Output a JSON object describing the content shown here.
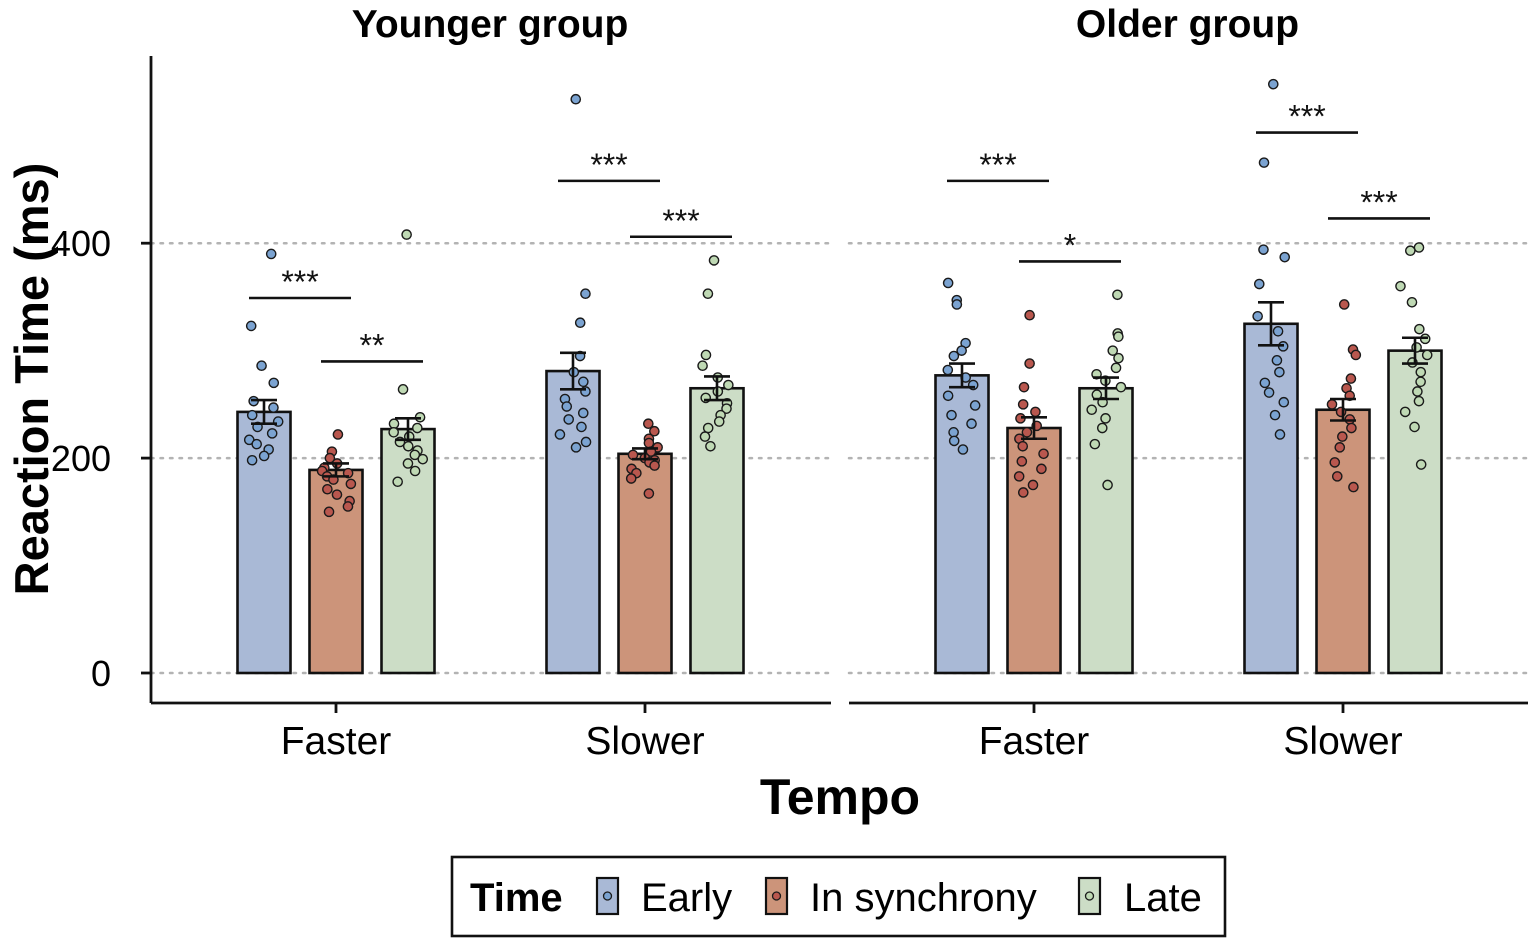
{
  "chart_data": {
    "type": "bar",
    "ylabel": "Reaction Time (ms)",
    "xlabel": "Tempo",
    "yticks": [
      0,
      200,
      400
    ],
    "ylim": [
      -25,
      570
    ],
    "grid": "horizontal dotted at y ticks",
    "panels": [
      {
        "title": "Younger group",
        "categories": [
          "Faster",
          "Slower"
        ],
        "series": [
          {
            "name": "Early",
            "color": "#a9b9d6",
            "point_color": "#7ba3d1",
            "means": [
              243,
              281
            ],
            "se": [
              11,
              17
            ],
            "points": [
              [
                390,
                323,
                286,
                270,
                253,
                247,
                240,
                234,
                229,
                223,
                217,
                213,
                208,
                202,
                198
              ],
              [
                534,
                353,
                326,
                295,
                280,
                271,
                262,
                255,
                248,
                242,
                236,
                229,
                222,
                215,
                210
              ]
            ]
          },
          {
            "name": "In synchrony",
            "color": "#cc947a",
            "point_color": "#b9574e",
            "means": [
              189,
              204
            ],
            "se": [
              6,
              5
            ],
            "points": [
              [
                222,
                206,
                200,
                195,
                191,
                188,
                186,
                183,
                180,
                176,
                171,
                166,
                160,
                155,
                150
              ],
              [
                232,
                225,
                218,
                214,
                210,
                206,
                203,
                200,
                198,
                196,
                193,
                190,
                186,
                181,
                167
              ]
            ]
          },
          {
            "name": "Late",
            "color": "#ccddc6",
            "point_color": "#bfd9b4",
            "means": [
              227,
              265
            ],
            "se": [
              10,
              11
            ],
            "points": [
              [
                408,
                264,
                238,
                232,
                228,
                224,
                220,
                215,
                211,
                207,
                203,
                199,
                195,
                188,
                178
              ],
              [
                384,
                353,
                296,
                286,
                275,
                268,
                262,
                256,
                251,
                246,
                240,
                234,
                228,
                220,
                211
              ]
            ]
          }
        ],
        "significance": [
          {
            "category": 0,
            "from": "Early",
            "to": "In synchrony",
            "label": "***",
            "y": 349
          },
          {
            "category": 0,
            "from": "In synchrony",
            "to": "Late",
            "label": "**",
            "y": 290
          },
          {
            "category": 1,
            "from": "Early",
            "to": "In synchrony",
            "label": "***",
            "y": 458
          },
          {
            "category": 1,
            "from": "In synchrony",
            "to": "Late",
            "label": "***",
            "y": 406
          }
        ]
      },
      {
        "title": "Older group",
        "categories": [
          "Faster",
          "Slower"
        ],
        "series": [
          {
            "name": "Early",
            "color": "#a9b9d6",
            "point_color": "#7ba3d1",
            "means": [
              277,
              325
            ],
            "se": [
              11,
              20
            ],
            "points": [
              [
                363,
                347,
                343,
                307,
                300,
                295,
                282,
                275,
                268,
                258,
                249,
                240,
                232,
                224,
                216,
                208
              ],
              [
                548,
                475,
                394,
                387,
                362,
                332,
                318,
                304,
                291,
                280,
                270,
                261,
                252,
                240,
                222
              ]
            ]
          },
          {
            "name": "In synchrony",
            "color": "#cc947a",
            "point_color": "#b9574e",
            "means": [
              228,
              245
            ],
            "se": [
              10,
              10
            ],
            "points": [
              [
                333,
                288,
                266,
                250,
                243,
                237,
                230,
                224,
                218,
                211,
                204,
                197,
                190,
                183,
                175,
                168
              ],
              [
                343,
                301,
                296,
                274,
                265,
                258,
                250,
                243,
                236,
                228,
                220,
                210,
                196,
                183,
                173
              ]
            ]
          },
          {
            "name": "Late",
            "color": "#ccddc6",
            "point_color": "#bfd9b4",
            "means": [
              265,
              300
            ],
            "se": [
              10,
              12
            ],
            "points": [
              [
                352,
                316,
                313,
                300,
                293,
                284,
                278,
                272,
                266,
                259,
                252,
                245,
                237,
                228,
                213,
                175
              ],
              [
                396,
                393,
                360,
                345,
                320,
                311,
                303,
                296,
                289,
                280,
                271,
                262,
                253,
                243,
                229,
                194
              ]
            ]
          }
        ],
        "significance": [
          {
            "category": 0,
            "from": "Early",
            "to": "In synchrony",
            "label": "***",
            "y": 458
          },
          {
            "category": 0,
            "from": "In synchrony",
            "to": "Late",
            "label": "*",
            "y": 383
          },
          {
            "category": 1,
            "from": "Early",
            "to": "In synchrony",
            "label": "***",
            "y": 503
          },
          {
            "category": 1,
            "from": "In synchrony",
            "to": "Late",
            "label": "***",
            "y": 423
          }
        ]
      }
    ],
    "legend": {
      "title": "Time",
      "position": "bottom",
      "items": [
        {
          "label": "Early",
          "color": "#a9b9d6",
          "point_color": "#7ba3d1"
        },
        {
          "label": "In synchrony",
          "color": "#cc947a",
          "point_color": "#b9574e"
        },
        {
          "label": "Late",
          "color": "#ccddc6",
          "point_color": "#bfd9b4"
        }
      ]
    }
  }
}
